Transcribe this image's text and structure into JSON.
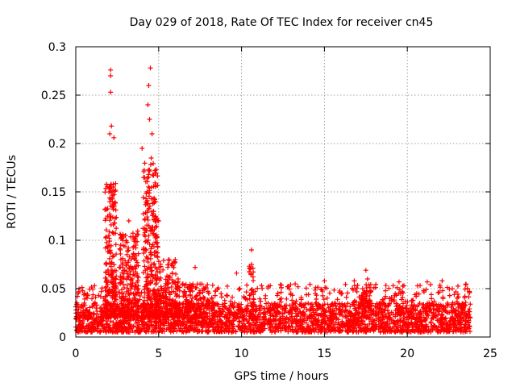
{
  "chart_data": {
    "type": "scatter",
    "title": "Day 029 of 2018, Rate Of TEC Index for receiver cn45",
    "xlabel": "GPS time / hours",
    "ylabel": "ROTI / TECUs",
    "xlim": [
      0,
      25
    ],
    "ylim": [
      0,
      0.3
    ],
    "xticks": [
      0,
      5,
      10,
      15,
      20,
      25
    ],
    "yticks": [
      0,
      0.05,
      0.1,
      0.15,
      0.2,
      0.25,
      0.3
    ],
    "xtick_labels": [
      "0",
      "5",
      "10",
      "15",
      "20",
      "25"
    ],
    "ytick_labels": [
      "0",
      "0.05",
      "0.1",
      "0.15",
      "0.2",
      "0.25",
      "0.3"
    ],
    "grid": true,
    "marker": "+",
    "color": "#ff0000",
    "series": [
      {
        "name": "ROTI",
        "x_range": [
          0,
          23.8
        ],
        "baseline_range": [
          0.005,
          0.035
        ],
        "notable_points": [
          {
            "x": 2.1,
            "y": 0.276
          },
          {
            "x": 2.1,
            "y": 0.27
          },
          {
            "x": 2.1,
            "y": 0.253
          },
          {
            "x": 2.05,
            "y": 0.21
          },
          {
            "x": 2.15,
            "y": 0.218
          },
          {
            "x": 2.3,
            "y": 0.206
          },
          {
            "x": 2.0,
            "y": 0.15
          },
          {
            "x": 2.2,
            "y": 0.14
          },
          {
            "x": 2.0,
            "y": 0.095
          },
          {
            "x": 4.5,
            "y": 0.278
          },
          {
            "x": 4.4,
            "y": 0.26
          },
          {
            "x": 4.35,
            "y": 0.24
          },
          {
            "x": 4.45,
            "y": 0.225
          },
          {
            "x": 4.6,
            "y": 0.21
          },
          {
            "x": 4.55,
            "y": 0.185
          },
          {
            "x": 4.0,
            "y": 0.195
          },
          {
            "x": 4.1,
            "y": 0.165
          },
          {
            "x": 4.3,
            "y": 0.15
          },
          {
            "x": 4.8,
            "y": 0.14
          },
          {
            "x": 5.0,
            "y": 0.12
          },
          {
            "x": 3.0,
            "y": 0.105
          },
          {
            "x": 3.2,
            "y": 0.12
          },
          {
            "x": 6.0,
            "y": 0.08
          },
          {
            "x": 7.2,
            "y": 0.072
          },
          {
            "x": 9.7,
            "y": 0.066
          },
          {
            "x": 10.6,
            "y": 0.09
          },
          {
            "x": 10.6,
            "y": 0.075
          },
          {
            "x": 15.0,
            "y": 0.058
          },
          {
            "x": 16.8,
            "y": 0.058
          },
          {
            "x": 17.5,
            "y": 0.069
          },
          {
            "x": 17.6,
            "y": 0.06
          },
          {
            "x": 19.5,
            "y": 0.057
          },
          {
            "x": 21.2,
            "y": 0.057
          },
          {
            "x": 22.1,
            "y": 0.058
          }
        ]
      }
    ]
  }
}
